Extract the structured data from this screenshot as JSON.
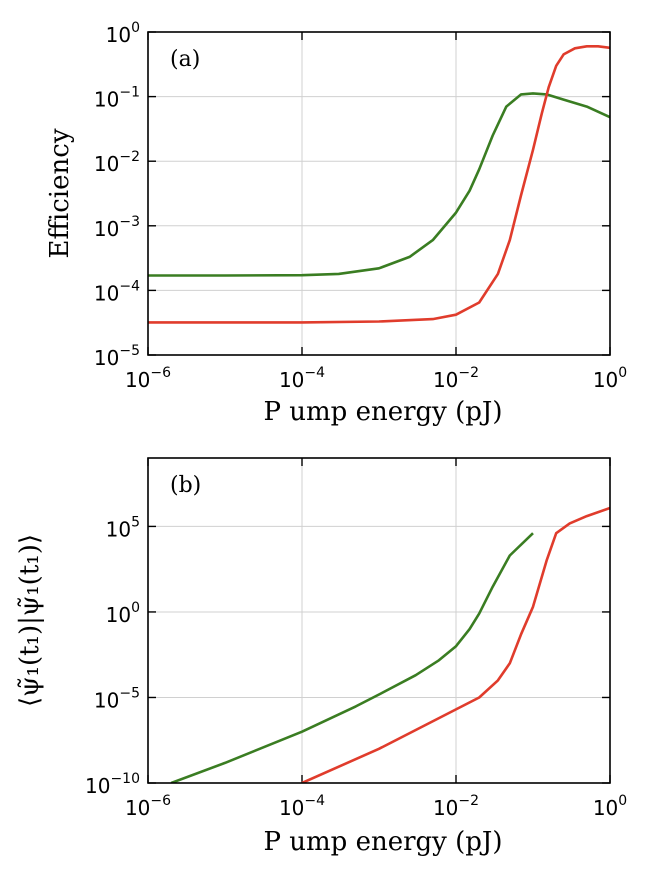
{
  "chart_data": [
    {
      "type": "line",
      "panel_label": "(a)",
      "xlabel": "P ump energy (pJ)",
      "ylabel": "Efficiency",
      "xscale": "log",
      "yscale": "log",
      "xlim": [
        1e-06,
        1
      ],
      "ylim": [
        1e-05,
        1
      ],
      "grid": true,
      "xticks": [
        {
          "base": "10",
          "exp": "−6"
        },
        {
          "base": "10",
          "exp": "−4"
        },
        {
          "base": "10",
          "exp": "−2"
        },
        {
          "base": "10",
          "exp": "0"
        }
      ],
      "yticks": [
        {
          "base": "10",
          "exp": "−5"
        },
        {
          "base": "10",
          "exp": "−4"
        },
        {
          "base": "10",
          "exp": "−3"
        },
        {
          "base": "10",
          "exp": "−2"
        },
        {
          "base": "10",
          "exp": "−1"
        },
        {
          "base": "10",
          "exp": "0"
        }
      ],
      "series": [
        {
          "name": "green",
          "color": "#3a7d22",
          "x": [
            1e-06,
            1e-05,
            0.0001,
            0.0003,
            0.001,
            0.0025,
            0.005,
            0.01,
            0.015,
            0.02,
            0.03,
            0.045,
            0.07,
            0.1,
            0.15,
            0.25,
            0.5,
            1
          ],
          "y": [
            0.00017,
            0.00017,
            0.000172,
            0.00018,
            0.00022,
            0.00033,
            0.0006,
            0.0016,
            0.0035,
            0.0075,
            0.025,
            0.07,
            0.108,
            0.112,
            0.108,
            0.09,
            0.07,
            0.048
          ]
        },
        {
          "name": "red",
          "color": "#e03c2c",
          "x": [
            1e-06,
            0.0001,
            0.001,
            0.005,
            0.01,
            0.02,
            0.035,
            0.05,
            0.07,
            0.1,
            0.13,
            0.16,
            0.2,
            0.25,
            0.35,
            0.5,
            0.7,
            1
          ],
          "y": [
            3.2e-05,
            3.2e-05,
            3.3e-05,
            3.6e-05,
            4.2e-05,
            6.5e-05,
            0.00018,
            0.0006,
            0.003,
            0.015,
            0.055,
            0.14,
            0.3,
            0.45,
            0.56,
            0.6,
            0.6,
            0.57
          ]
        }
      ]
    },
    {
      "type": "line",
      "panel_label": "(b)",
      "xlabel": "P ump energy (pJ)",
      "ylabel": "⟨ψ̃₁(t₁)|ψ̃₁(t₁)⟩",
      "xscale": "log",
      "yscale": "log",
      "xlim": [
        1e-06,
        1
      ],
      "ylim": [
        1e-10,
        1000000000.0
      ],
      "grid": true,
      "xticks": [
        {
          "base": "10",
          "exp": "−6"
        },
        {
          "base": "10",
          "exp": "−4"
        },
        {
          "base": "10",
          "exp": "−2"
        },
        {
          "base": "10",
          "exp": "0"
        }
      ],
      "yticks": [
        {
          "base": "10",
          "exp": "−10"
        },
        {
          "base": "10",
          "exp": "−5"
        },
        {
          "base": "10",
          "exp": "0"
        },
        {
          "base": "10",
          "exp": "5"
        }
      ],
      "series": [
        {
          "name": "green",
          "color": "#3a7d22",
          "x": [
            2e-06,
            1e-05,
            0.0001,
            0.0005,
            0.001,
            0.003,
            0.006,
            0.01,
            0.015,
            0.02,
            0.03,
            0.05,
            0.1
          ],
          "y": [
            1e-10,
            1.5e-09,
            1e-07,
            3e-06,
            1.5e-05,
            0.0002,
            0.0015,
            0.01,
            0.1,
            0.8,
            30,
            2000,
            40000
          ]
        },
        {
          "name": "red",
          "color": "#e03c2c",
          "x": [
            0.0001,
            0.001,
            0.01,
            0.02,
            0.035,
            0.05,
            0.07,
            0.1,
            0.15,
            0.2,
            0.3,
            0.5,
            1
          ],
          "y": [
            1e-10,
            1e-08,
            2e-06,
            1e-05,
            0.0001,
            0.001,
            0.05,
            2,
            1000,
            40000,
            150000,
            400000,
            1200000
          ]
        }
      ]
    }
  ]
}
